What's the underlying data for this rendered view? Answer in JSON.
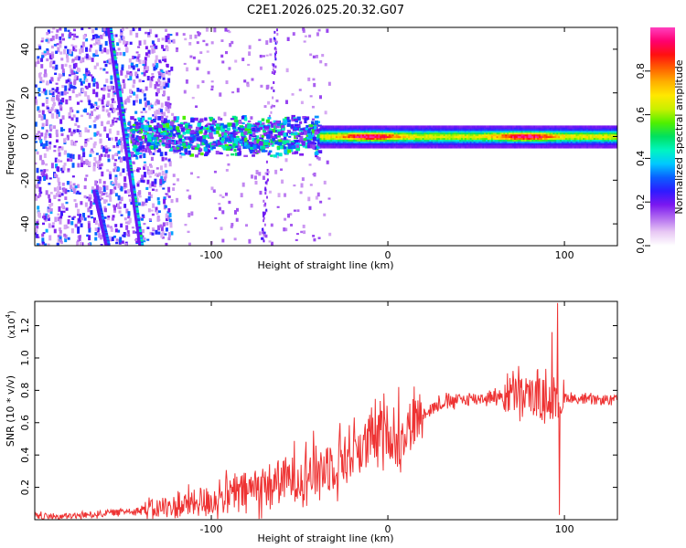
{
  "title": "C2E1.2026.025.20.32.G07",
  "chart_data": [
    {
      "type": "heatmap",
      "xlabel": "Height of straight line (km)",
      "ylabel": "Frequency (Hz)",
      "xlim": [
        -200,
        130
      ],
      "ylim": [
        -50,
        50
      ],
      "xticks": [
        -100,
        0,
        100
      ],
      "yticks": [
        -40,
        -20,
        0,
        20,
        40
      ],
      "colorbar": {
        "label": "Normalized spectral amplitude",
        "range": [
          0.0,
          1.0
        ],
        "ticks": [
          0.0,
          0.2,
          0.4,
          0.6,
          0.8
        ],
        "colors": [
          "#ffffff",
          "#e8c8f4",
          "#b36ef0",
          "#7a17f0",
          "#2e1bff",
          "#0a60ff",
          "#00c8ff",
          "#00f5c0",
          "#00e060",
          "#50f000",
          "#c8f000",
          "#ffe800",
          "#ffb000",
          "#ff6000",
          "#ff1010",
          "#ff0070",
          "#ff40c0"
        ]
      },
      "features": [
        {
          "name": "tone-line",
          "frequency_hz": 0,
          "x_start": -38,
          "x_end": 130,
          "peak_x": [
            -10,
            78
          ]
        },
        {
          "name": "broad-cluster",
          "frequency_hz": 0,
          "x_start": -145,
          "x_end": -38
        },
        {
          "name": "diagonal-streak",
          "start": [
            -157,
            50
          ],
          "end": [
            -139,
            -50
          ]
        },
        {
          "name": "faint-streak",
          "start": [
            -165,
            -25
          ],
          "end": [
            -158,
            -50
          ]
        }
      ]
    },
    {
      "type": "line",
      "xlabel": "Height of straight line (km)",
      "ylabel": "SNR (10 * v/v)",
      "y_multiplier": "(x10",
      "y_multiplier_exp": "4",
      "xlim": [
        -200,
        130
      ],
      "ylim": [
        0,
        1.35
      ],
      "xticks": [
        -100,
        0,
        100
      ],
      "yticks": [
        0.2,
        0.4,
        0.6,
        0.8,
        1.0,
        1.2
      ],
      "color": "#ee3333",
      "series": [
        {
          "name": "SNR",
          "x": [
            -200,
            -180,
            -160,
            -140,
            -120,
            -100,
            -80,
            -60,
            -40,
            -30,
            -20,
            -10,
            0,
            5,
            10,
            20,
            30,
            40,
            60,
            70,
            80,
            90,
            95,
            100,
            110,
            130
          ],
          "values": [
            0.02,
            0.02,
            0.04,
            0.06,
            0.08,
            0.12,
            0.18,
            0.24,
            0.3,
            0.36,
            0.42,
            0.48,
            0.56,
            0.46,
            0.56,
            0.66,
            0.72,
            0.74,
            0.76,
            0.77,
            0.76,
            0.76,
            0.7,
            0.76,
            0.74,
            0.74
          ]
        }
      ],
      "spikes": [
        {
          "x": 6,
          "y": 0.82
        },
        {
          "x": 74,
          "y": 0.95
        },
        {
          "x": 93,
          "y": 1.16
        },
        {
          "x": 96,
          "y": 1.34
        },
        {
          "x": 97,
          "y": 0.03
        }
      ]
    }
  ]
}
